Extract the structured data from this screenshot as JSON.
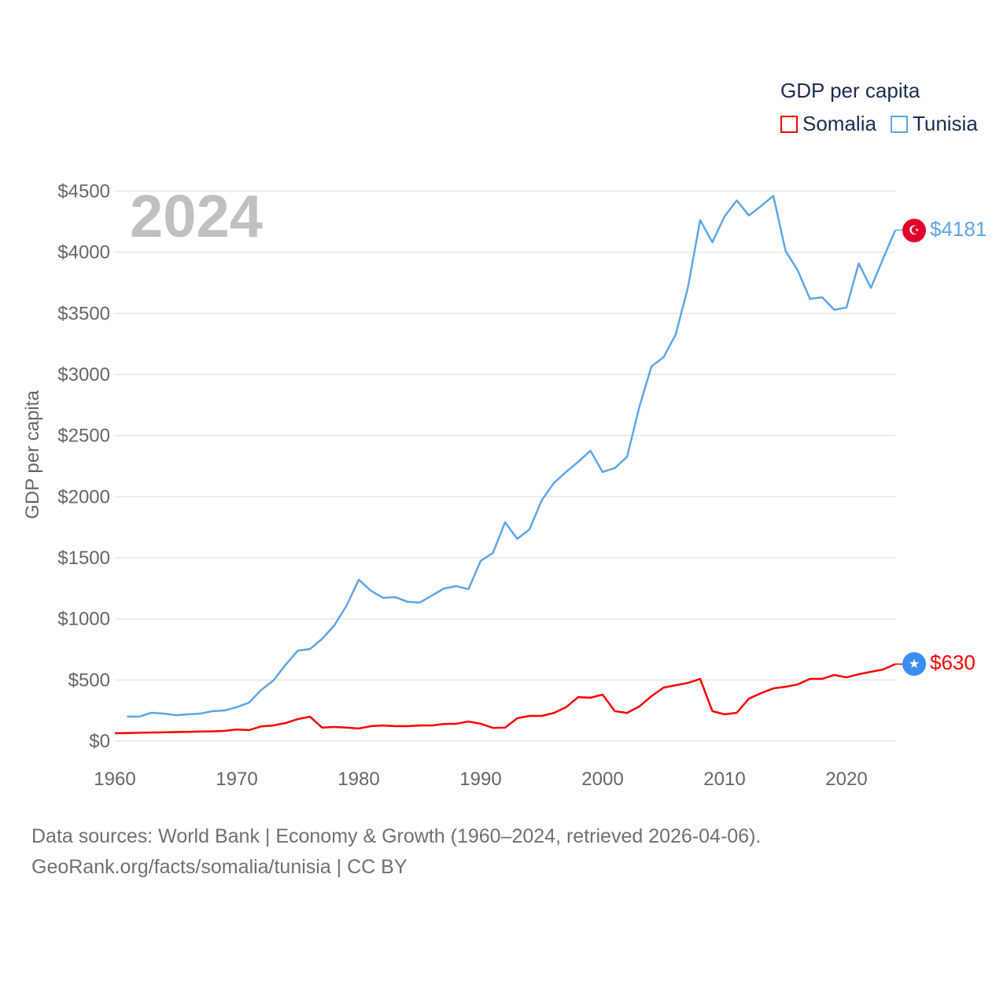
{
  "chart_data": {
    "type": "line",
    "title": "GDP per capita",
    "year_label": "2024",
    "xlabel": "",
    "ylabel": "GDP per capita",
    "xlim": [
      1960,
      2024
    ],
    "ylim": [
      0,
      4500
    ],
    "x_ticks": [
      1960,
      1970,
      1980,
      1990,
      2000,
      2010,
      2020
    ],
    "y_ticks": [
      0,
      500,
      1000,
      1500,
      2000,
      2500,
      3000,
      3500,
      4000,
      4500
    ],
    "y_tick_labels": [
      "$0",
      "$500",
      "$1000",
      "$1500",
      "$2000",
      "$2500",
      "$3000",
      "$3500",
      "$4000",
      "$4500"
    ],
    "grid": true,
    "legend_placement": "top-right",
    "series": [
      {
        "name": "Somalia",
        "color": "#ff0000",
        "end_label": "$630",
        "flag": "star",
        "start_year": 1960,
        "values": [
          64,
          66,
          68,
          70,
          72,
          74,
          76,
          78,
          80,
          84,
          95,
          90,
          120,
          128,
          148,
          180,
          200,
          110,
          116,
          110,
          103,
          122,
          128,
          122,
          122,
          128,
          128,
          140,
          142,
          160,
          142,
          108,
          110,
          187,
          206,
          206,
          230,
          277,
          360,
          355,
          380,
          245,
          230,
          283,
          367,
          438,
          457,
          476,
          509,
          245,
          219,
          232,
          348,
          393,
          431,
          444,
          464,
          509,
          509,
          541,
          522,
          547,
          567,
          586,
          630
        ]
      },
      {
        "name": "Tunisia",
        "color": "#5ea6e8",
        "end_label": "$4181",
        "flag": "crescent",
        "start_year": 1961,
        "values": [
          200,
          200,
          232,
          225,
          212,
          219,
          225,
          245,
          251,
          277,
          315,
          418,
          496,
          625,
          740,
          753,
          837,
          947,
          1108,
          1320,
          1230,
          1172,
          1178,
          1140,
          1133,
          1191,
          1249,
          1268,
          1243,
          1475,
          1539,
          1790,
          1655,
          1732,
          1970,
          2112,
          2202,
          2286,
          2376,
          2202,
          2234,
          2325,
          2730,
          3065,
          3142,
          3329,
          3715,
          4263,
          4082,
          4295,
          4424,
          4301,
          4379,
          4462,
          4012,
          3851,
          3619,
          3632,
          3529,
          3548,
          3909,
          3709,
          3947,
          4181
        ]
      }
    ]
  },
  "footer": {
    "line1": "Data sources: World Bank | Economy & Growth (1960–2024, retrieved 2026-04-06).",
    "line2": "GeoRank.org/facts/somalia/tunisia | CC BY"
  },
  "flags": {
    "tunisia_color": "#e0002a",
    "somalia_color": "#3a8ef0"
  }
}
